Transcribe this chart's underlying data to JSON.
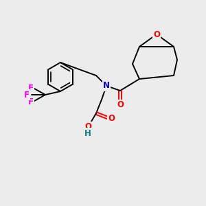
{
  "bg_color": "#ececec",
  "C": "#000000",
  "N": "#0000cc",
  "O": "#ff0000",
  "F": "#ff00ff",
  "H": "#008080",
  "lw": 1.4,
  "figsize": [
    3.0,
    3.0
  ],
  "dpi": 100
}
